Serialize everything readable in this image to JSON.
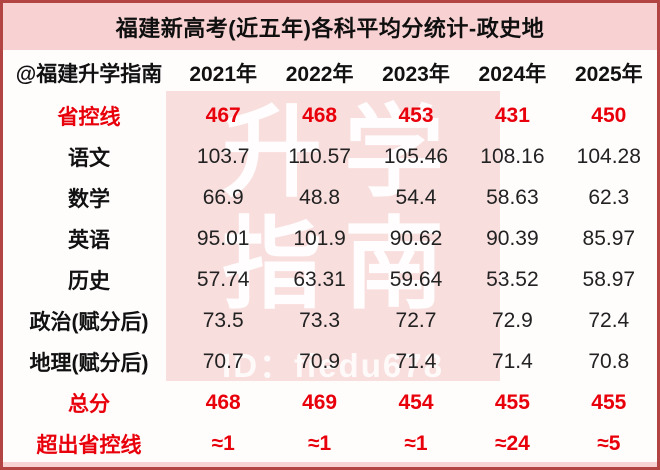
{
  "title": "福建新高考(近五年)各科平均分统计-政史地",
  "watermark": {
    "line1": "升学",
    "line2": "指南",
    "id_text": "ID：fiedu678"
  },
  "colors": {
    "frame_border": "#b24444",
    "title_band_pink": "#f8d2d2",
    "watermark_pink": "#f9dede",
    "red_text": "#e8000b",
    "black_text": "#111111"
  },
  "chart_data": {
    "type": "table",
    "title": "福建新高考(近五年)各科平均分统计-政史地",
    "source_label": "@福建升学指南",
    "year_columns": [
      "2021年",
      "2022年",
      "2023年",
      "2024年",
      "2025年"
    ],
    "rows": [
      {
        "label": "省控线",
        "style": "red",
        "values": [
          "467",
          "468",
          "453",
          "431",
          "450"
        ]
      },
      {
        "label": "语文",
        "style": "black",
        "values": [
          "103.7",
          "110.57",
          "105.46",
          "108.16",
          "104.28"
        ]
      },
      {
        "label": "数学",
        "style": "black",
        "values": [
          "66.9",
          "48.8",
          "54.4",
          "58.63",
          "62.3"
        ]
      },
      {
        "label": "英语",
        "style": "black",
        "values": [
          "95.01",
          "101.9",
          "90.62",
          "90.39",
          "85.97"
        ]
      },
      {
        "label": "历史",
        "style": "black",
        "values": [
          "57.74",
          "63.31",
          "59.64",
          "53.52",
          "58.97"
        ]
      },
      {
        "label": "政治(赋分后)",
        "style": "black",
        "values": [
          "73.5",
          "73.3",
          "72.7",
          "72.9",
          "72.4"
        ]
      },
      {
        "label": "地理(赋分后)",
        "style": "black",
        "values": [
          "70.7",
          "70.9",
          "71.4",
          "71.4",
          "70.8"
        ]
      },
      {
        "label": "总分",
        "style": "red",
        "values": [
          "468",
          "469",
          "454",
          "455",
          "455"
        ]
      },
      {
        "label": "超出省控线",
        "style": "red",
        "values": [
          "≈1",
          "≈1",
          "≈1",
          "≈24",
          "≈5"
        ]
      }
    ]
  }
}
